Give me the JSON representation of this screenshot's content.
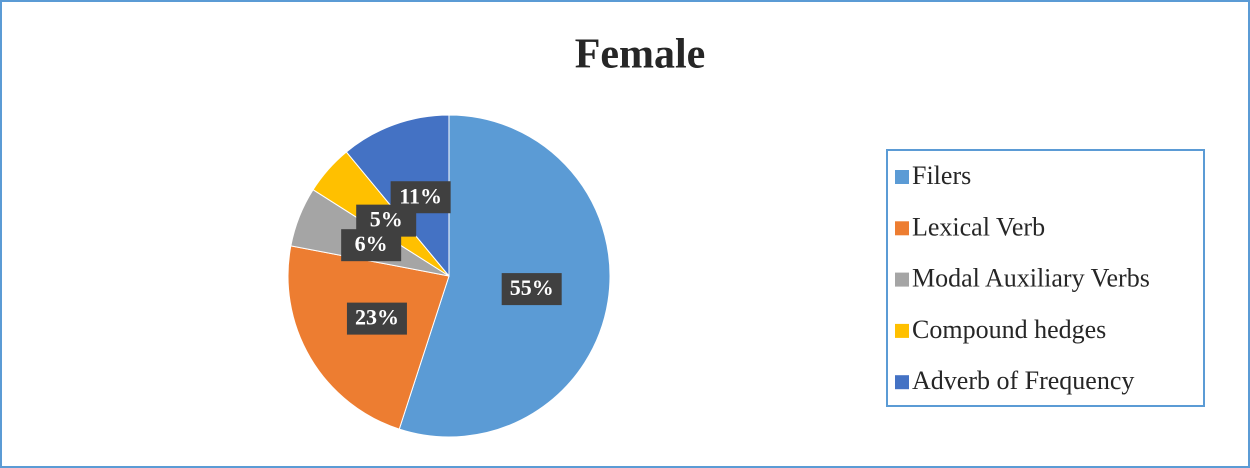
{
  "chart_data": {
    "type": "pie",
    "title": "Female",
    "categories": [
      "Filers",
      "Lexical Verb",
      "Modal Auxiliary Verbs",
      "Compound hedges",
      "Adverb of Frequency"
    ],
    "values": [
      55,
      23,
      6,
      5,
      11
    ],
    "value_labels": [
      "55%",
      "23%",
      "6%",
      "5%",
      "11%"
    ],
    "colors": [
      "#5b9bd5",
      "#ed7d31",
      "#a5a5a5",
      "#ffc000",
      "#4472c4"
    ],
    "legend": "right"
  }
}
